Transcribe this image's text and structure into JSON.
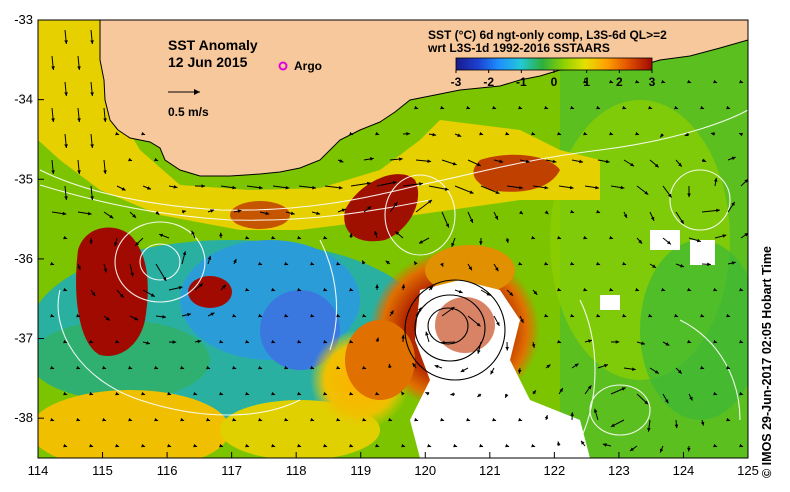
{
  "map": {
    "title": "SST Anomaly",
    "date": "12 Jun 2015",
    "argo_label": "Argo",
    "scale_label": "0.5 m/s",
    "colorbar_title_line1": "SST (°C) 6d ngt-only comp, L3S-6d QL>=2",
    "colorbar_title_line2": "wrt L3S-1d 1992-2016 SSTAARS",
    "colorbar_ticks": [
      "-3",
      "-2",
      "-1",
      "0",
      "1",
      "2",
      "3"
    ],
    "colorbar_colors": [
      "#1a1a8a",
      "#1c3fd0",
      "#1e90ff",
      "#22c8d8",
      "#2cb03c",
      "#8fd000",
      "#e6e000",
      "#ffa000",
      "#e05000",
      "#a00a00"
    ],
    "credit": "© IMOS 29-Jun-2017 02:05 Hobart Time",
    "land_color": "#f7c89b",
    "x_ticks": [
      "114",
      "115",
      "116",
      "117",
      "118",
      "119",
      "120",
      "121",
      "122",
      "123",
      "124",
      "125"
    ],
    "y_ticks": [
      "-33",
      "-34",
      "-35",
      "-36",
      "-37",
      "-38"
    ],
    "lon_range": [
      114,
      125
    ],
    "lat_range": [
      -38.5,
      -33
    ]
  }
}
